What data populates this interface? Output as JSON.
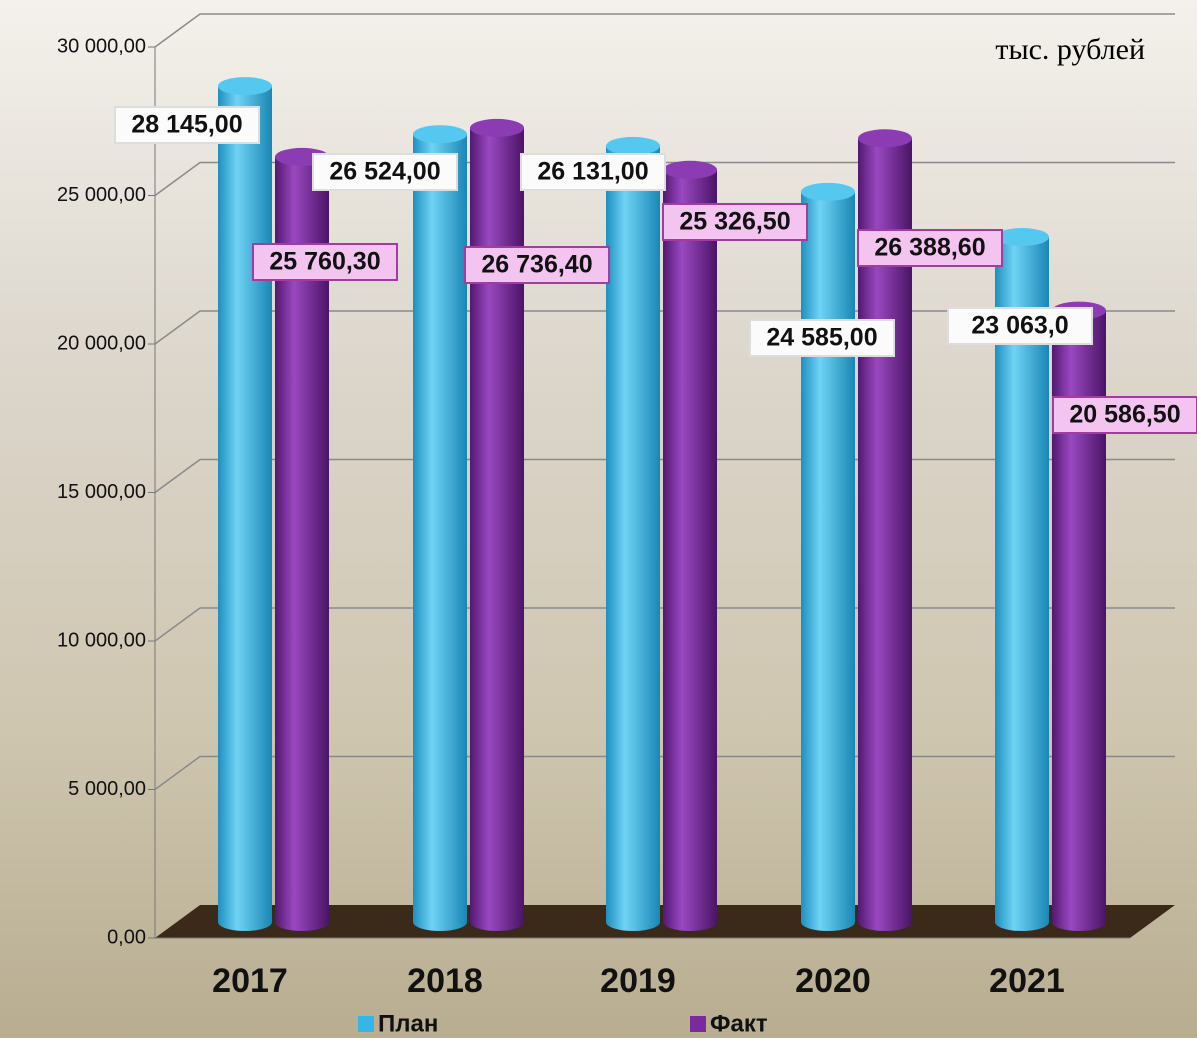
{
  "chart_data": {
    "type": "cylinder-bar",
    "annotation": "тыс. рублей",
    "categories": [
      "2017",
      "2018",
      "2019",
      "2020",
      "2021"
    ],
    "series": [
      {
        "name": "План",
        "color": "#35b6e6",
        "values": [
          28145,
          26524,
          26131,
          24585,
          23063
        ],
        "value_labels": [
          "28 145,00",
          "26 524,00",
          "26 131,00",
          "24 585,00",
          "23 063,0"
        ]
      },
      {
        "name": "Факт",
        "color": "#7a2a9c",
        "values": [
          25760.3,
          26736.4,
          25326.5,
          26388.6,
          20586.5
        ],
        "value_labels": [
          "25 760,30",
          "26 736,40",
          "25 326,50",
          "26 388,60",
          "20 586,50"
        ]
      }
    ],
    "ylim": [
      0,
      30000
    ],
    "yticks": [
      {
        "value": 0,
        "label": "0,00"
      },
      {
        "value": 5000,
        "label": "5 000,00"
      },
      {
        "value": 10000,
        "label": "10 000,00"
      },
      {
        "value": 15000,
        "label": "15 000,00"
      },
      {
        "value": 20000,
        "label": "20 000,00"
      },
      {
        "value": 25000,
        "label": "25 000,00"
      },
      {
        "value": 30000,
        "label": "30 000,00"
      }
    ],
    "grid": true
  }
}
